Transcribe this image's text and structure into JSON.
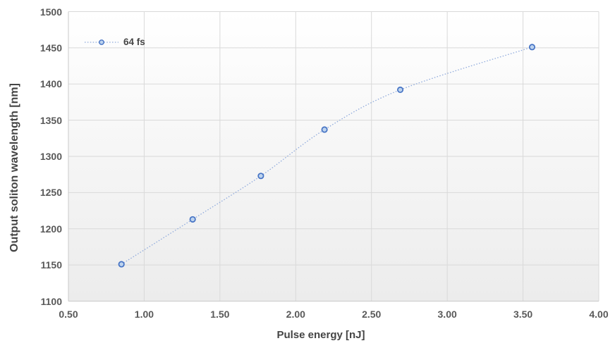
{
  "chart_data": {
    "type": "line",
    "title": "",
    "xlabel": "Pulse energy [nJ]",
    "ylabel": "Output soliton wavelength [nm]",
    "xlim": [
      0.5,
      4.0
    ],
    "ylim": [
      1100,
      1500
    ],
    "xticks": [
      0.5,
      1.0,
      1.5,
      2.0,
      2.5,
      3.0,
      3.5,
      4.0
    ],
    "x_tick_labels": [
      "0.50",
      "1.00",
      "1.50",
      "2.00",
      "2.50",
      "3.00",
      "3.50",
      "4.00"
    ],
    "yticks": [
      1100,
      1150,
      1200,
      1250,
      1300,
      1350,
      1400,
      1450,
      1500
    ],
    "y_tick_labels": [
      "1100",
      "1150",
      "1200",
      "1250",
      "1300",
      "1350",
      "1400",
      "1450",
      "1500"
    ],
    "grid": true,
    "legend_position": "top-left-inside",
    "series": [
      {
        "name": "64 fs",
        "marker": "circle",
        "line_style": "dotted",
        "smooth": true,
        "points": [
          {
            "x": 0.85,
            "y": 1151
          },
          {
            "x": 1.32,
            "y": 1213
          },
          {
            "x": 1.77,
            "y": 1273
          },
          {
            "x": 2.19,
            "y": 1337
          },
          {
            "x": 2.69,
            "y": 1392
          },
          {
            "x": 3.56,
            "y": 1451
          }
        ]
      }
    ],
    "colors": {
      "line": "#8faadc",
      "marker_fill": "#bdd3ee",
      "marker_stroke": "#4472c4",
      "gridline": "#d9d9d9",
      "axis_line": "#c9c9c9",
      "tick_text": "#595959",
      "title_text": "#444444",
      "plot_bg_top": "#ffffff",
      "plot_bg_bottom": "#ececec"
    }
  }
}
